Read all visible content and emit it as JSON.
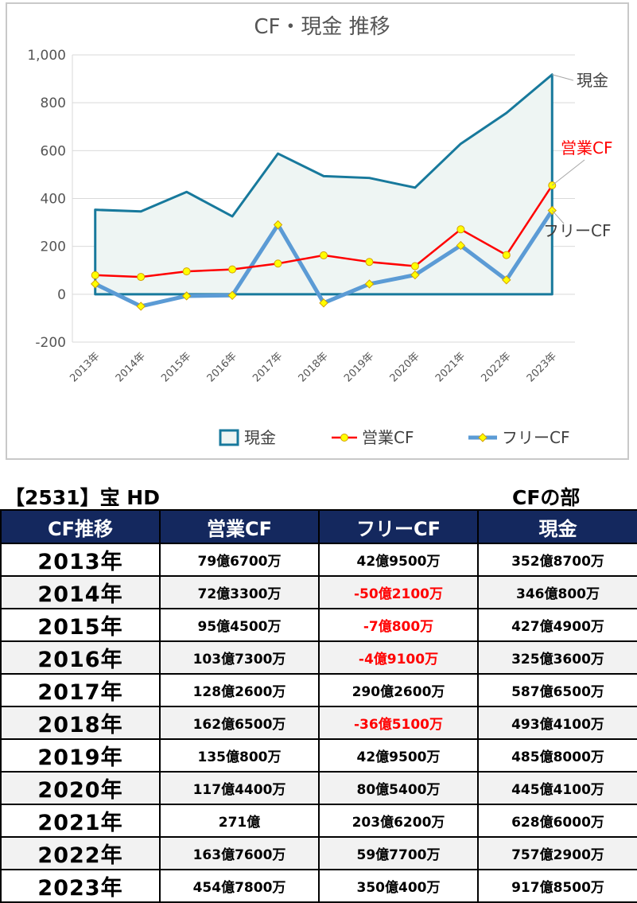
{
  "chart_data": {
    "type": "line",
    "title": "CF・現金 推移",
    "categories": [
      "2013年",
      "2014年",
      "2015年",
      "2016年",
      "2017年",
      "2018年",
      "2019年",
      "2020年",
      "2021年",
      "2022年",
      "2023年"
    ],
    "series": [
      {
        "name": "現金",
        "style": "area",
        "color": "#17799c",
        "fill": "#eef5f3",
        "values": [
          352.87,
          346.08,
          427.49,
          325.36,
          587.65,
          493.41,
          485.8,
          445.41,
          628.6,
          757.29,
          917.85
        ]
      },
      {
        "name": "営業CF",
        "style": "line-circle-markers",
        "color": "#ff0000",
        "marker_color": "#ffff00",
        "values": [
          79.67,
          72.33,
          95.45,
          103.73,
          128.26,
          162.65,
          135.08,
          117.44,
          271,
          163.76,
          454.78
        ]
      },
      {
        "name": "フリーCF",
        "style": "line-diamond-markers",
        "color": "#5b9bd5",
        "marker_color": "#ffff00",
        "values": [
          42.95,
          -50.21,
          -7.08,
          -4.91,
          290.26,
          -36.51,
          42.95,
          80.54,
          203.62,
          59.77,
          350.04
        ]
      }
    ],
    "y_ticks": [
      "1,000",
      "800",
      "600",
      "400",
      "200",
      "0",
      "-200"
    ],
    "negative_tick_color": "#ff0000",
    "ylim": [
      -200,
      1000
    ],
    "grid": true,
    "legend_position": "bottom",
    "end_labels": [
      {
        "text": "現金",
        "color": "#404040"
      },
      {
        "text": "営業CF",
        "color": "#ff0000"
      },
      {
        "text": "フリーCF",
        "color": "#404040"
      }
    ]
  },
  "table": {
    "caption_left": "【2531】宝 HD",
    "caption_right": "CFの部",
    "header_color": "#14285e",
    "negative_color": "#ff0000",
    "headers": [
      "CF推移",
      "営業CF",
      "フリーCF",
      "現金"
    ],
    "rows": [
      {
        "year": "2013年",
        "op": "79億6700万",
        "free": "42億9500万",
        "cash": "352億8700万",
        "free_negative": false
      },
      {
        "year": "2014年",
        "op": "72億3300万",
        "free": "-50億2100万",
        "cash": "346億800万",
        "free_negative": true
      },
      {
        "year": "2015年",
        "op": "95億4500万",
        "free": "-7億800万",
        "cash": "427億4900万",
        "free_negative": true
      },
      {
        "year": "2016年",
        "op": "103億7300万",
        "free": "-4億9100万",
        "cash": "325億3600万",
        "free_negative": true
      },
      {
        "year": "2017年",
        "op": "128億2600万",
        "free": "290億2600万",
        "cash": "587億6500万",
        "free_negative": false
      },
      {
        "year": "2018年",
        "op": "162億6500万",
        "free": "-36億5100万",
        "cash": "493億4100万",
        "free_negative": true
      },
      {
        "year": "2019年",
        "op": "135億800万",
        "free": "42億9500万",
        "cash": "485億8000万",
        "free_negative": false
      },
      {
        "year": "2020年",
        "op": "117億4400万",
        "free": "80億5400万",
        "cash": "445億4100万",
        "free_negative": false
      },
      {
        "year": "2021年",
        "op": "271億",
        "free": "203億6200万",
        "cash": "628億6000万",
        "free_negative": false
      },
      {
        "year": "2022年",
        "op": "163億7600万",
        "free": "59億7700万",
        "cash": "757億2900万",
        "free_negative": false
      },
      {
        "year": "2023年",
        "op": "454億7800万",
        "free": "350億400万",
        "cash": "917億8500万",
        "free_negative": false
      }
    ]
  }
}
